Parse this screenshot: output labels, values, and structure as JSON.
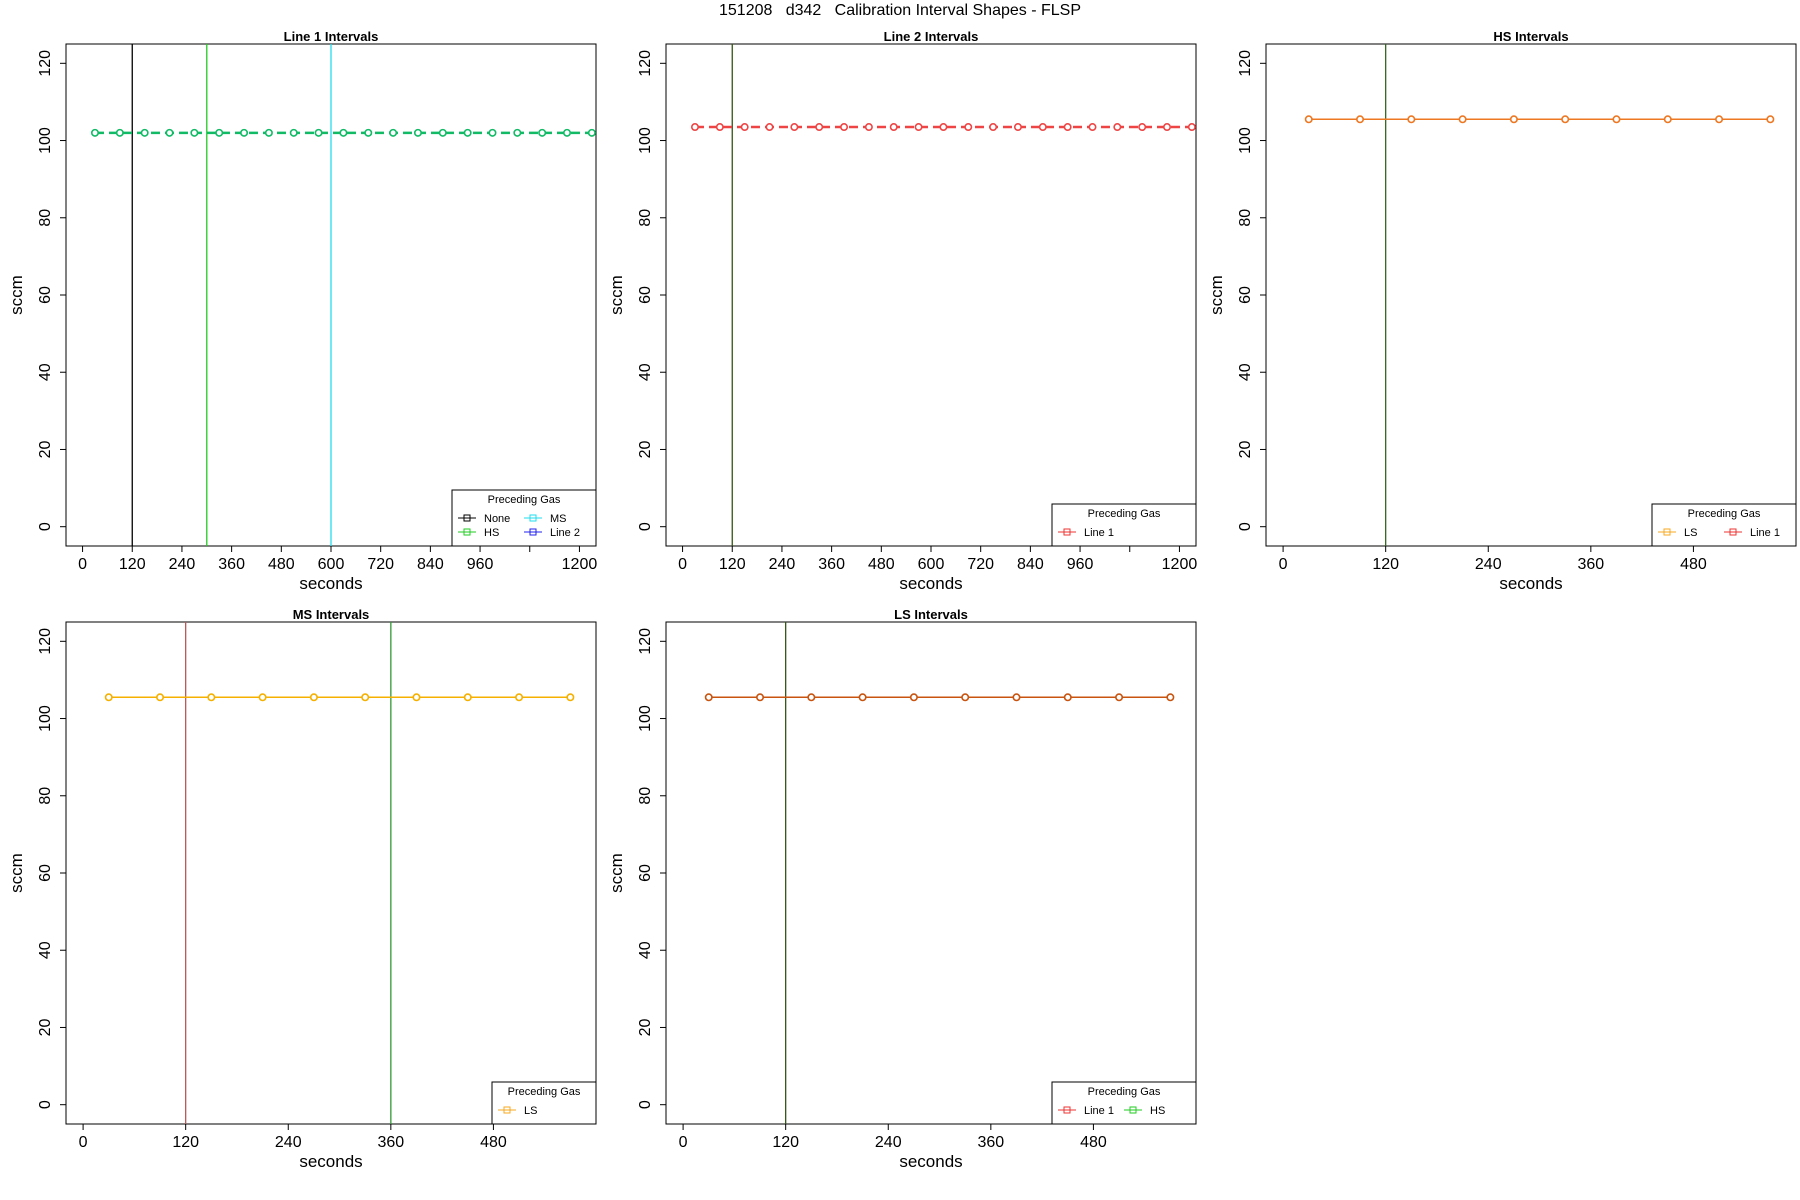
{
  "page_title": "151208   d342   Calibration Interval Shapes - FLSP",
  "colors": {
    "axis": "#000000",
    "None": "#000000",
    "HS": "#22cc22",
    "MS": "#22ddee",
    "Line 2": "#2222ee",
    "Line 1": "#ee3333",
    "LS": "#f5a820",
    "series_line1": "#11bb66",
    "series_line2": "#ee4444",
    "series_hs": "#ee7722",
    "series_ms": "#f5b000",
    "series_ls": "#c85410",
    "vline_hs_in_hs": "#336622",
    "vline_line1_in_ms": "#bb5555",
    "vline_hs_in_ms": "#339933",
    "vline_ls": "#335511"
  },
  "chart_data": [
    {
      "type": "line",
      "title": "Line 1 Intervals",
      "xlabel": "seconds",
      "ylabel": "sccm",
      "xlim": [
        -40,
        1240
      ],
      "ylim": [
        -5,
        125
      ],
      "xticks": [
        0,
        120,
        240,
        360,
        480,
        600,
        720,
        840,
        960,
        1080,
        1200
      ],
      "xtick_labels": [
        "0",
        "120",
        "240",
        "360",
        "480",
        "600",
        "720",
        "840",
        "960",
        "",
        "1200"
      ],
      "yticks": [
        0,
        20,
        40,
        60,
        80,
        100,
        120
      ],
      "series": [
        {
          "name": "Line 1",
          "color_key": "series_line1",
          "style": "dashed",
          "marker": "circle",
          "x": [
            30,
            90,
            150,
            210,
            270,
            330,
            390,
            450,
            510,
            570,
            630,
            690,
            750,
            810,
            870,
            930,
            990,
            1050,
            1110,
            1170,
            1230
          ],
          "y": [
            102,
            102,
            102,
            102,
            102,
            102,
            102,
            102,
            102,
            102,
            102,
            102,
            102,
            102,
            102,
            102,
            102,
            102,
            102,
            102,
            102
          ]
        }
      ],
      "vlines": [
        {
          "x": 120,
          "color_key": "None"
        },
        {
          "x": 300,
          "color_key": "HS"
        },
        {
          "x": 600,
          "color_key": "MS"
        }
      ],
      "legend": {
        "title": "Preceding Gas",
        "position": "bottom-right",
        "columns": 2,
        "entries": [
          "None",
          "MS",
          "HS",
          "Line 2"
        ]
      }
    },
    {
      "type": "line",
      "title": "Line 2 Intervals",
      "xlabel": "seconds",
      "ylabel": "sccm",
      "xlim": [
        -40,
        1240
      ],
      "ylim": [
        -5,
        125
      ],
      "xticks": [
        0,
        120,
        240,
        360,
        480,
        600,
        720,
        840,
        960,
        1080,
        1200
      ],
      "xtick_labels": [
        "0",
        "120",
        "240",
        "360",
        "480",
        "600",
        "720",
        "840",
        "960",
        "",
        "1200"
      ],
      "yticks": [
        0,
        20,
        40,
        60,
        80,
        100,
        120
      ],
      "series": [
        {
          "name": "Line 2",
          "color_key": "series_line2",
          "style": "dashed",
          "marker": "circle",
          "x": [
            30,
            90,
            150,
            210,
            270,
            330,
            390,
            450,
            510,
            570,
            630,
            690,
            750,
            810,
            870,
            930,
            990,
            1050,
            1110,
            1170,
            1230
          ],
          "y": [
            103.5,
            103.5,
            103.5,
            103.5,
            103.5,
            103.5,
            103.5,
            103.5,
            103.5,
            103.5,
            103.5,
            103.5,
            103.5,
            103.5,
            103.5,
            103.5,
            103.5,
            103.5,
            103.5,
            103.5,
            103.5
          ]
        }
      ],
      "vlines": [
        {
          "x": 120,
          "color_key": "vline_ls"
        }
      ],
      "legend": {
        "title": "Preceding Gas",
        "position": "bottom-right",
        "columns": 1,
        "entries": [
          "Line 1"
        ]
      }
    },
    {
      "type": "line",
      "title": "HS Intervals",
      "xlabel": "seconds",
      "ylabel": "sccm",
      "xlim": [
        -20,
        600
      ],
      "ylim": [
        -5,
        125
      ],
      "xticks": [
        0,
        120,
        240,
        360,
        480
      ],
      "xtick_labels": [
        "0",
        "120",
        "240",
        "360",
        "480"
      ],
      "yticks": [
        0,
        20,
        40,
        60,
        80,
        100,
        120
      ],
      "series": [
        {
          "name": "HS",
          "color_key": "series_hs",
          "style": "solid",
          "marker": "circle",
          "x": [
            30,
            90,
            150,
            210,
            270,
            330,
            390,
            450,
            510,
            570
          ],
          "y": [
            105.5,
            105.5,
            105.5,
            105.5,
            105.5,
            105.5,
            105.5,
            105.5,
            105.5,
            105.5
          ]
        }
      ],
      "vlines": [
        {
          "x": 120,
          "color_key": "vline_hs_in_hs"
        }
      ],
      "legend": {
        "title": "Preceding Gas",
        "position": "bottom-right",
        "columns": 2,
        "entries": [
          "LS",
          "Line 1"
        ]
      }
    },
    {
      "type": "line",
      "title": "MS Intervals",
      "xlabel": "seconds",
      "ylabel": "sccm",
      "xlim": [
        -20,
        600
      ],
      "ylim": [
        -5,
        125
      ],
      "xticks": [
        0,
        120,
        240,
        360,
        480
      ],
      "xtick_labels": [
        "0",
        "120",
        "240",
        "360",
        "480"
      ],
      "yticks": [
        0,
        20,
        40,
        60,
        80,
        100,
        120
      ],
      "series": [
        {
          "name": "MS",
          "color_key": "series_ms",
          "style": "solid",
          "marker": "circle",
          "x": [
            30,
            90,
            150,
            210,
            270,
            330,
            390,
            450,
            510,
            570
          ],
          "y": [
            105.5,
            105.5,
            105.5,
            105.5,
            105.5,
            105.5,
            105.5,
            105.5,
            105.5,
            105.5
          ]
        }
      ],
      "vlines": [
        {
          "x": 120,
          "color_key": "vline_line1_in_ms"
        },
        {
          "x": 360,
          "color_key": "vline_hs_in_ms"
        }
      ],
      "legend": {
        "title": "Preceding Gas",
        "position": "bottom-right",
        "columns": 1,
        "entries": [
          "LS"
        ]
      }
    },
    {
      "type": "line",
      "title": "LS Intervals",
      "xlabel": "seconds",
      "ylabel": "sccm",
      "xlim": [
        -20,
        600
      ],
      "ylim": [
        -5,
        125
      ],
      "xticks": [
        0,
        120,
        240,
        360,
        480
      ],
      "xtick_labels": [
        "0",
        "120",
        "240",
        "360",
        "480"
      ],
      "yticks": [
        0,
        20,
        40,
        60,
        80,
        100,
        120
      ],
      "series": [
        {
          "name": "LS",
          "color_key": "series_ls",
          "style": "solid",
          "marker": "circle",
          "x": [
            30,
            90,
            150,
            210,
            270,
            330,
            390,
            450,
            510,
            570
          ],
          "y": [
            105.5,
            105.5,
            105.5,
            105.5,
            105.5,
            105.5,
            105.5,
            105.5,
            105.5,
            105.5
          ]
        }
      ],
      "vlines": [
        {
          "x": 120,
          "color_key": "vline_ls"
        }
      ],
      "legend": {
        "title": "Preceding Gas",
        "position": "bottom-right",
        "columns": 2,
        "entries": [
          "Line 1",
          "HS"
        ]
      }
    }
  ]
}
